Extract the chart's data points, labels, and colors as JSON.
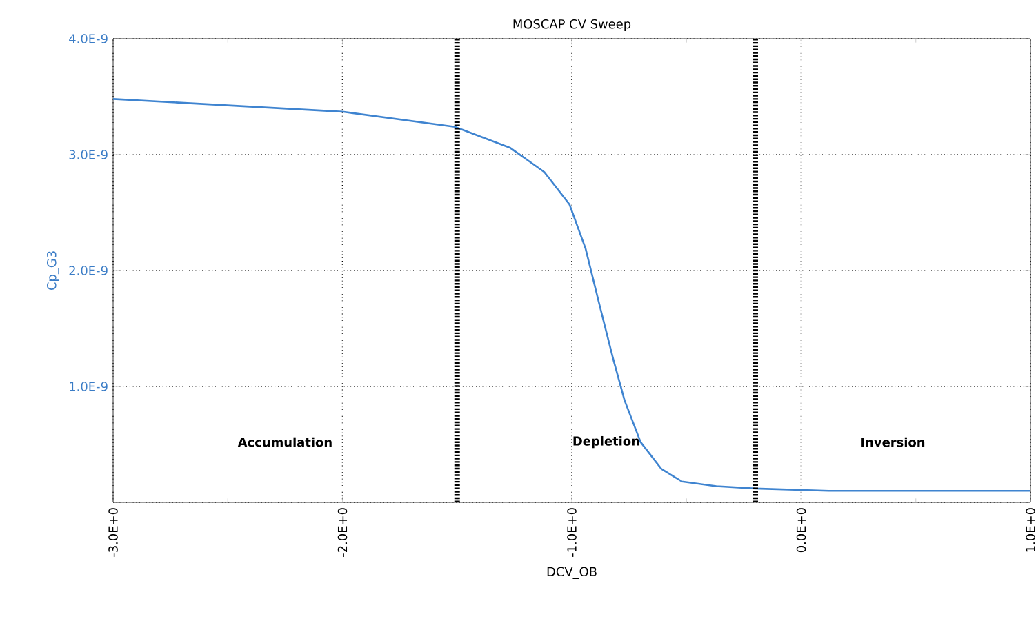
{
  "chart_data": {
    "type": "line",
    "title": "MOSCAP CV Sweep",
    "xlabel": "DCV_OB",
    "ylabel": "Cp_G3",
    "x": [
      -3.0,
      -2.0,
      -1.51,
      -1.27,
      -1.12,
      -1.01,
      -0.94,
      -0.88,
      -0.82,
      -0.77,
      -0.7,
      -0.61,
      -0.52,
      -0.37,
      -0.2,
      0.12,
      1.0
    ],
    "series": [
      {
        "color": "#3f84d0",
        "values": [
          3.48e-09,
          3.37e-09,
          3.24e-09,
          3.06e-09,
          2.85e-09,
          2.57e-09,
          2.19e-09,
          1.71e-09,
          1.24e-09,
          8.8e-10,
          5.2e-10,
          2.9e-10,
          1.8e-10,
          1.4e-10,
          1.2e-10,
          1e-10,
          1e-10
        ]
      }
    ],
    "xlim": [
      -3,
      1
    ],
    "ylim": [
      0,
      4e-09
    ],
    "xticks": [
      {
        "value": -3,
        "label": "-3.0E+0"
      },
      {
        "value": -2,
        "label": "-2.0E+0"
      },
      {
        "value": -1,
        "label": "-1.0E+0"
      },
      {
        "value": 0,
        "label": "0.0E+0"
      },
      {
        "value": 1,
        "label": "1.0E+0"
      }
    ],
    "yticks": [
      {
        "value": 0,
        "label": null
      },
      {
        "value": 1e-09,
        "label": "1.0E-9"
      },
      {
        "value": 2e-09,
        "label": "2.0E-9"
      },
      {
        "value": 3e-09,
        "label": "3.0E-9"
      },
      {
        "value": 4e-09,
        "label": "4.0E-9"
      }
    ],
    "ref_lines": [
      {
        "axis": "x",
        "value": -1.5,
        "color": "#000000",
        "line_style": "dotted"
      },
      {
        "axis": "x",
        "value": -0.2,
        "color": "#000000",
        "line_style": "dotted"
      }
    ],
    "annotations": [
      "Accumulation",
      "Depletion",
      "Inversion"
    ],
    "grid": true,
    "marker": "none",
    "line_style": "solid"
  }
}
